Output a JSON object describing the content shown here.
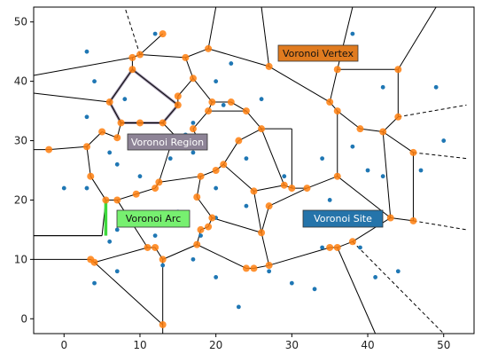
{
  "chart_data": {
    "type": "scatter",
    "title": "",
    "xlabel": "",
    "ylabel": "",
    "xlim": [
      -4,
      54
    ],
    "ylim": [
      -2.5,
      52.5
    ],
    "x_ticks": [
      0,
      10,
      20,
      30,
      40,
      50
    ],
    "y_ticks": [
      0,
      10,
      20,
      30,
      40,
      50
    ],
    "grid": false,
    "colors": {
      "site": "#1f77b4",
      "vertex": "#ff7f0e",
      "edge": "#000000",
      "region_outline": "#9a8fa8",
      "arc": "#3cd93c"
    },
    "sites": [
      [
        3,
        45
      ],
      [
        4,
        40
      ],
      [
        3,
        34
      ],
      [
        8,
        37
      ],
      [
        12,
        48
      ],
      [
        20,
        40
      ],
      [
        21,
        36
      ],
      [
        22,
        43
      ],
      [
        26,
        37
      ],
      [
        16,
        31
      ],
      [
        17,
        33
      ],
      [
        6,
        28
      ],
      [
        7,
        26
      ],
      [
        10,
        24
      ],
      [
        3,
        22
      ],
      [
        0,
        22
      ],
      [
        7,
        15
      ],
      [
        6,
        13
      ],
      [
        14,
        27
      ],
      [
        17,
        28
      ],
      [
        20,
        22
      ],
      [
        24,
        27
      ],
      [
        29,
        24
      ],
      [
        24,
        19
      ],
      [
        20,
        17
      ],
      [
        15,
        18
      ],
      [
        13,
        9
      ],
      [
        12,
        14
      ],
      [
        4,
        6
      ],
      [
        7,
        8
      ],
      [
        17,
        10
      ],
      [
        20,
        7
      ],
      [
        18,
        14
      ],
      [
        23,
        2
      ],
      [
        27,
        8
      ],
      [
        30,
        6
      ],
      [
        33,
        5
      ],
      [
        35,
        20
      ],
      [
        34,
        27
      ],
      [
        38,
        29
      ],
      [
        40,
        25
      ],
      [
        42,
        24
      ],
      [
        38,
        48
      ],
      [
        42,
        39
      ],
      [
        49,
        39
      ],
      [
        50,
        30
      ],
      [
        47,
        25
      ],
      [
        41,
        7
      ],
      [
        44,
        8
      ],
      [
        35,
        16
      ],
      [
        39,
        12
      ],
      [
        34,
        12
      ]
    ],
    "vertices": [
      [
        -2,
        28.5
      ],
      [
        3,
        29
      ],
      [
        5,
        31.5
      ],
      [
        7,
        30.5
      ],
      [
        3.5,
        24
      ],
      [
        5.5,
        20
      ],
      [
        7,
        20
      ],
      [
        9.5,
        21
      ],
      [
        12,
        22
      ],
      [
        12.5,
        23
      ],
      [
        6,
        36.5
      ],
      [
        7.5,
        33
      ],
      [
        10,
        33
      ],
      [
        13,
        33
      ],
      [
        15,
        36
      ],
      [
        9,
        42
      ],
      [
        9,
        44
      ],
      [
        10,
        44.5
      ],
      [
        13,
        48
      ],
      [
        19,
        45.5
      ],
      [
        16,
        44
      ],
      [
        17,
        40.5
      ],
      [
        15,
        37.5
      ],
      [
        17,
        32
      ],
      [
        16,
        29
      ],
      [
        14,
        29
      ],
      [
        18,
        29
      ],
      [
        19,
        35
      ],
      [
        19.5,
        36.5
      ],
      [
        22,
        36.5
      ],
      [
        24,
        35
      ],
      [
        26,
        32
      ],
      [
        23,
        30
      ],
      [
        21,
        26
      ],
      [
        20,
        25
      ],
      [
        18,
        24
      ],
      [
        17.5,
        20.5
      ],
      [
        19.5,
        17
      ],
      [
        19,
        15.5
      ],
      [
        18,
        15
      ],
      [
        17.5,
        12.5
      ],
      [
        12,
        12
      ],
      [
        11,
        12
      ],
      [
        13,
        10
      ],
      [
        4,
        9.5
      ],
      [
        3.5,
        10
      ],
      [
        26,
        14.5
      ],
      [
        27,
        9
      ],
      [
        25,
        8.5
      ],
      [
        24,
        8.5
      ],
      [
        13,
        -1
      ],
      [
        27,
        42.5
      ],
      [
        35,
        36.5
      ],
      [
        36,
        35
      ],
      [
        36,
        42
      ],
      [
        44,
        42
      ],
      [
        44,
        34
      ],
      [
        39,
        32
      ],
      [
        42,
        31.5
      ],
      [
        46,
        28
      ],
      [
        46,
        16.5
      ],
      [
        43,
        17
      ],
      [
        36,
        24
      ],
      [
        32,
        22
      ],
      [
        30,
        22
      ],
      [
        29,
        22.5
      ],
      [
        25,
        21.5
      ],
      [
        27,
        19
      ],
      [
        38,
        13
      ],
      [
        36,
        12
      ],
      [
        35,
        12
      ]
    ],
    "edges": [
      [
        [
          -4,
          14
        ],
        [
          5,
          14
        ]
      ],
      [
        [
          -4,
          28.5
        ],
        [
          -2,
          28.5
        ]
      ],
      [
        [
          -2,
          28.5
        ],
        [
          3,
          29
        ]
      ],
      [
        [
          3,
          29
        ],
        [
          5,
          31.5
        ]
      ],
      [
        [
          5,
          31.5
        ],
        [
          7,
          30.5
        ]
      ],
      [
        [
          3,
          29
        ],
        [
          3.5,
          24
        ]
      ],
      [
        [
          3.5,
          24
        ],
        [
          5.5,
          20
        ]
      ],
      [
        [
          5.5,
          20
        ],
        [
          7,
          20
        ]
      ],
      [
        [
          7,
          20
        ],
        [
          9.5,
          21
        ]
      ],
      [
        [
          9.5,
          21
        ],
        [
          12,
          22
        ]
      ],
      [
        [
          12,
          22
        ],
        [
          12.5,
          23
        ]
      ],
      [
        [
          7,
          30.5
        ],
        [
          7.5,
          33
        ]
      ],
      [
        [
          7.5,
          33
        ],
        [
          6,
          36.5
        ]
      ],
      [
        [
          6,
          36.5
        ],
        [
          9,
          42
        ]
      ],
      [
        [
          9,
          42
        ],
        [
          9,
          44
        ]
      ],
      [
        [
          9,
          44
        ],
        [
          10,
          44.5
        ]
      ],
      [
        [
          7.5,
          33
        ],
        [
          10,
          33
        ]
      ],
      [
        [
          10,
          33
        ],
        [
          13,
          33
        ]
      ],
      [
        [
          13,
          33
        ],
        [
          15,
          36
        ]
      ],
      [
        [
          15,
          36
        ],
        [
          9,
          42
        ]
      ],
      [
        [
          10,
          44.5
        ],
        [
          16,
          44
        ]
      ],
      [
        [
          16,
          44
        ],
        [
          19,
          45.5
        ]
      ],
      [
        [
          19,
          45.5
        ],
        [
          27,
          42.5
        ]
      ],
      [
        [
          16,
          44
        ],
        [
          17,
          40.5
        ]
      ],
      [
        [
          17,
          40.5
        ],
        [
          15,
          37.5
        ]
      ],
      [
        [
          15,
          37.5
        ],
        [
          15,
          36
        ]
      ],
      [
        [
          17,
          40.5
        ],
        [
          19.5,
          36.5
        ]
      ],
      [
        [
          19.5,
          36.5
        ],
        [
          19,
          35
        ]
      ],
      [
        [
          19,
          35
        ],
        [
          17,
          32
        ]
      ],
      [
        [
          19.5,
          36.5
        ],
        [
          22,
          36.5
        ]
      ],
      [
        [
          22,
          36.5
        ],
        [
          24,
          35
        ]
      ],
      [
        [
          24,
          35
        ],
        [
          26,
          32
        ]
      ],
      [
        [
          26,
          32
        ],
        [
          23,
          30
        ]
      ],
      [
        [
          23,
          30
        ],
        [
          21,
          26
        ]
      ],
      [
        [
          21,
          26
        ],
        [
          20,
          25
        ]
      ],
      [
        [
          20,
          25
        ],
        [
          18,
          24
        ]
      ],
      [
        [
          18,
          24
        ],
        [
          17.5,
          20.5
        ]
      ],
      [
        [
          17.5,
          20.5
        ],
        [
          19.5,
          17
        ]
      ],
      [
        [
          19.5,
          17
        ],
        [
          19,
          15.5
        ]
      ],
      [
        [
          19,
          15.5
        ],
        [
          18,
          15
        ]
      ],
      [
        [
          18,
          15
        ],
        [
          17.5,
          12.5
        ]
      ],
      [
        [
          17.5,
          12.5
        ],
        [
          13,
          10
        ]
      ],
      [
        [
          13,
          10
        ],
        [
          12,
          12
        ]
      ],
      [
        [
          12,
          12
        ],
        [
          11,
          12
        ]
      ],
      [
        [
          11,
          12
        ],
        [
          7,
          20
        ]
      ],
      [
        [
          13,
          10
        ],
        [
          13,
          -1
        ]
      ],
      [
        [
          12.5,
          23
        ],
        [
          14,
          29
        ]
      ],
      [
        [
          14,
          29
        ],
        [
          16,
          29
        ]
      ],
      [
        [
          16,
          29
        ],
        [
          18,
          29
        ]
      ],
      [
        [
          18,
          29
        ],
        [
          17,
          32
        ]
      ],
      [
        [
          16,
          29
        ],
        [
          13,
          33
        ]
      ],
      [
        [
          12.5,
          23
        ],
        [
          18,
          24
        ]
      ],
      [
        [
          5,
          14
        ],
        [
          -4,
          14
        ]
      ],
      [
        [
          -4,
          10
        ],
        [
          3.5,
          10
        ]
      ],
      [
        [
          3.5,
          10
        ],
        [
          4,
          9.5
        ]
      ],
      [
        [
          4,
          9.5
        ],
        [
          11,
          12
        ]
      ],
      [
        [
          4,
          9.5
        ],
        [
          13,
          -1
        ]
      ],
      [
        [
          13,
          -1
        ],
        [
          13,
          -2.5
        ]
      ],
      [
        [
          17.5,
          12.5
        ],
        [
          24,
          8.5
        ]
      ],
      [
        [
          24,
          8.5
        ],
        [
          25,
          8.5
        ]
      ],
      [
        [
          25,
          8.5
        ],
        [
          27,
          9
        ]
      ],
      [
        [
          27,
          9
        ],
        [
          26,
          14.5
        ]
      ],
      [
        [
          26,
          14.5
        ],
        [
          25,
          21.5
        ]
      ],
      [
        [
          25,
          21.5
        ],
        [
          21,
          26
        ]
      ],
      [
        [
          26,
          14.5
        ],
        [
          19.5,
          17
        ]
      ],
      [
        [
          27,
          9
        ],
        [
          35,
          12
        ]
      ],
      [
        [
          35,
          12
        ],
        [
          36,
          12
        ]
      ],
      [
        [
          36,
          12
        ],
        [
          38,
          13
        ]
      ],
      [
        [
          38,
          13
        ],
        [
          43,
          17
        ]
      ],
      [
        [
          43,
          17
        ],
        [
          46,
          16.5
        ]
      ],
      [
        [
          46,
          16.5
        ],
        [
          53,
          15
        ]
      ],
      [
        [
          46,
          16.5
        ],
        [
          46,
          28
        ]
      ],
      [
        [
          46,
          28
        ],
        [
          53,
          27
        ]
      ],
      [
        [
          46,
          28
        ],
        [
          42,
          31.5
        ]
      ],
      [
        [
          42,
          31.5
        ],
        [
          39,
          32
        ]
      ],
      [
        [
          39,
          32
        ],
        [
          36,
          35
        ]
      ],
      [
        [
          36,
          35
        ],
        [
          35,
          36.5
        ]
      ],
      [
        [
          35,
          36.5
        ],
        [
          36,
          42
        ]
      ],
      [
        [
          36,
          42
        ],
        [
          44,
          42
        ]
      ],
      [
        [
          44,
          42
        ],
        [
          44,
          34
        ]
      ],
      [
        [
          44,
          34
        ],
        [
          53,
          36
        ]
      ],
      [
        [
          44,
          34
        ],
        [
          42,
          31.5
        ]
      ],
      [
        [
          36,
          42
        ],
        [
          38,
          52.5
        ]
      ],
      [
        [
          44,
          42
        ],
        [
          49,
          52.5
        ]
      ],
      [
        [
          35,
          36.5
        ],
        [
          27,
          42.5
        ]
      ],
      [
        [
          27,
          42.5
        ],
        [
          26,
          52.5
        ]
      ],
      [
        [
          36,
          35
        ],
        [
          36,
          24
        ]
      ],
      [
        [
          36,
          24
        ],
        [
          32,
          22
        ]
      ],
      [
        [
          32,
          22
        ],
        [
          30,
          22
        ]
      ],
      [
        [
          30,
          22
        ],
        [
          29,
          22.5
        ]
      ],
      [
        [
          29,
          22.5
        ],
        [
          25,
          21.5
        ]
      ],
      [
        [
          29,
          22.5
        ],
        [
          26,
          32
        ]
      ],
      [
        [
          30,
          22
        ],
        [
          30,
          32
        ]
      ],
      [
        [
          30,
          32
        ],
        [
          26,
          32
        ]
      ],
      [
        [
          36,
          24
        ],
        [
          43,
          17
        ]
      ],
      [
        [
          42,
          31.5
        ],
        [
          43,
          17
        ]
      ],
      [
        [
          32,
          22
        ],
        [
          27,
          19
        ]
      ],
      [
        [
          27,
          19
        ],
        [
          26,
          14.5
        ]
      ],
      [
        [
          36,
          12
        ],
        [
          41,
          -2.5
        ]
      ],
      [
        [
          38,
          13
        ],
        [
          50,
          -2.5
        ]
      ],
      [
        [
          9,
          44
        ],
        [
          -4,
          41
        ]
      ],
      [
        [
          6,
          36.5
        ],
        [
          -4,
          38
        ]
      ],
      [
        [
          10,
          44.5
        ],
        [
          8,
          52.5
        ]
      ],
      [
        [
          19,
          45.5
        ],
        [
          20,
          52.5
        ]
      ],
      [
        [
          13,
          48
        ],
        [
          10,
          44.5
        ]
      ],
      [
        [
          19,
          35
        ],
        [
          24,
          35
        ]
      ],
      [
        [
          5.5,
          20
        ],
        [
          5,
          14
        ]
      ]
    ],
    "dashed_edges": [
      [
        [
          10,
          44.5
        ],
        [
          8,
          52.5
        ]
      ],
      [
        [
          44,
          34
        ],
        [
          53,
          36
        ]
      ],
      [
        [
          46,
          28
        ],
        [
          53,
          27
        ]
      ],
      [
        [
          46,
          16.5
        ],
        [
          53,
          15
        ]
      ],
      [
        [
          38,
          13
        ],
        [
          50,
          -2.5
        ]
      ]
    ],
    "region": [
      [
        6,
        36.5
      ],
      [
        7.5,
        33
      ],
      [
        10,
        33
      ],
      [
        13,
        33
      ],
      [
        15,
        36
      ],
      [
        9,
        42
      ]
    ],
    "arc": [
      [
        5.5,
        20
      ],
      [
        5.5,
        14
      ]
    ],
    "annotations": {
      "vertex": "Voronoi Vertex",
      "region": "Voronoi Region",
      "arc": "Voronoi Arc",
      "site": "Voronoi Site"
    }
  }
}
